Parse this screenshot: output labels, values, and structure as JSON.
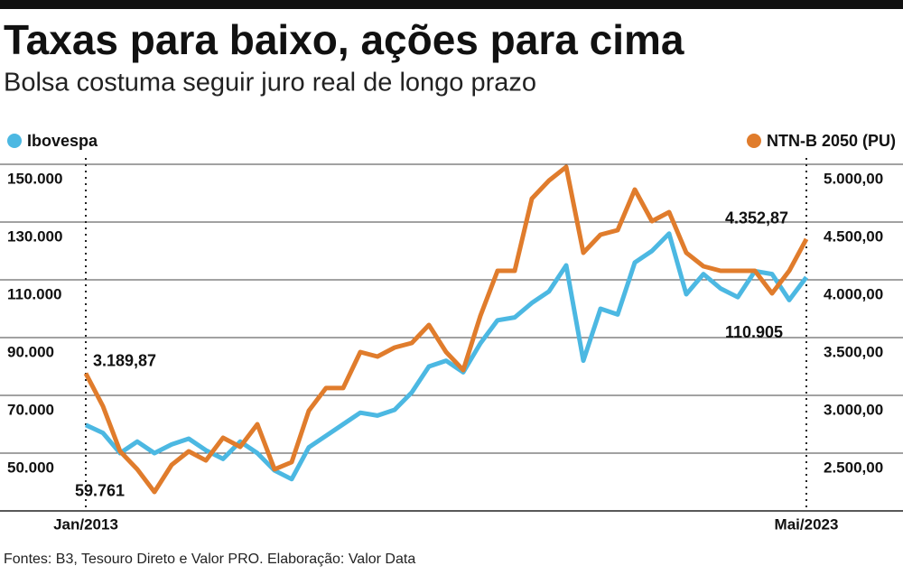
{
  "chart_data": {
    "type": "line",
    "title": "Taxas para baixo, ações para cima",
    "subtitle": "Bolsa costuma seguir juro real de longo prazo",
    "source": "Fontes: B3, Tesouro Direto e Valor PRO. Elaboração: Valor Data",
    "categories": [
      "Jan/2013",
      null,
      null,
      null,
      null,
      null,
      null,
      null,
      null,
      null,
      null,
      null,
      null,
      null,
      null,
      null,
      null,
      null,
      null,
      null,
      null,
      null,
      null,
      null,
      null,
      null,
      null,
      null,
      null,
      null,
      null,
      null,
      null,
      null,
      null,
      null,
      null,
      null,
      null,
      null,
      null,
      null,
      "Mai/2023"
    ],
    "ylim": [
      30000,
      150000
    ],
    "yticks": [
      {
        "value": 50000,
        "label": "50.000"
      },
      {
        "value": 70000,
        "label": "70.000"
      },
      {
        "value": 90000,
        "label": "90.000"
      },
      {
        "value": 110000,
        "label": "110.000"
      },
      {
        "value": 130000,
        "label": "130.000"
      },
      {
        "value": 150000,
        "label": "150.000"
      }
    ],
    "y2lim": [
      2000,
      5000
    ],
    "y2ticks": [
      {
        "value": 2500,
        "label": "2.500,00"
      },
      {
        "value": 3000,
        "label": "3.000,00"
      },
      {
        "value": 3500,
        "label": "3.500,00"
      },
      {
        "value": 4000,
        "label": "4.000,00"
      },
      {
        "value": 4500,
        "label": "4.500,00"
      },
      {
        "value": 5000,
        "label": "5.000,00"
      }
    ],
    "grid": true,
    "series": [
      {
        "name": "Ibovespa",
        "color": "#4cb8e2",
        "values": [
          59761,
          57000,
          50000,
          54000,
          50000,
          53000,
          55000,
          51000,
          48000,
          54000,
          50000,
          44000,
          41000,
          52000,
          56000,
          60000,
          64000,
          63000,
          65000,
          71000,
          80000,
          82000,
          78000,
          88000,
          96000,
          97000,
          102000,
          106000,
          115000,
          82000,
          100000,
          98000,
          116000,
          120000,
          126000,
          105000,
          112000,
          107000,
          104000,
          113000,
          112000,
          103000,
          110905
        ],
        "value_labels": [
          "59.761",
          null,
          null,
          null,
          null,
          null,
          null,
          null,
          null,
          null,
          null,
          null,
          null,
          null,
          null,
          null,
          null,
          null,
          null,
          null,
          null,
          null,
          null,
          null,
          null,
          null,
          null,
          null,
          null,
          null,
          null,
          null,
          null,
          null,
          null,
          null,
          null,
          null,
          null,
          null,
          null,
          null,
          "110.905"
        ]
      },
      {
        "name": "NTN-B 2050 (PU)",
        "color": "#e07c2c",
        "axis": "y2",
        "values": [
          3189.87,
          2906,
          2516,
          2360,
          2164,
          2398,
          2516,
          2437,
          2633,
          2555,
          2750,
          2360,
          2422,
          2867,
          3063,
          3063,
          3375,
          3336,
          3414,
          3453,
          3609,
          3375,
          3219,
          3688,
          4078,
          4078,
          4703,
          4859,
          4977,
          4234,
          4391,
          4430,
          4781,
          4508,
          4586,
          4234,
          4117,
          4078,
          4078,
          4078,
          3883,
          4078,
          4352.87
        ],
        "value_labels": [
          "3.189,87",
          null,
          null,
          null,
          null,
          null,
          null,
          null,
          null,
          null,
          null,
          null,
          null,
          null,
          null,
          null,
          null,
          null,
          null,
          null,
          null,
          null,
          null,
          null,
          null,
          null,
          null,
          null,
          null,
          null,
          null,
          null,
          null,
          null,
          null,
          null,
          null,
          null,
          null,
          null,
          null,
          null,
          "4.352,87"
        ]
      }
    ]
  }
}
